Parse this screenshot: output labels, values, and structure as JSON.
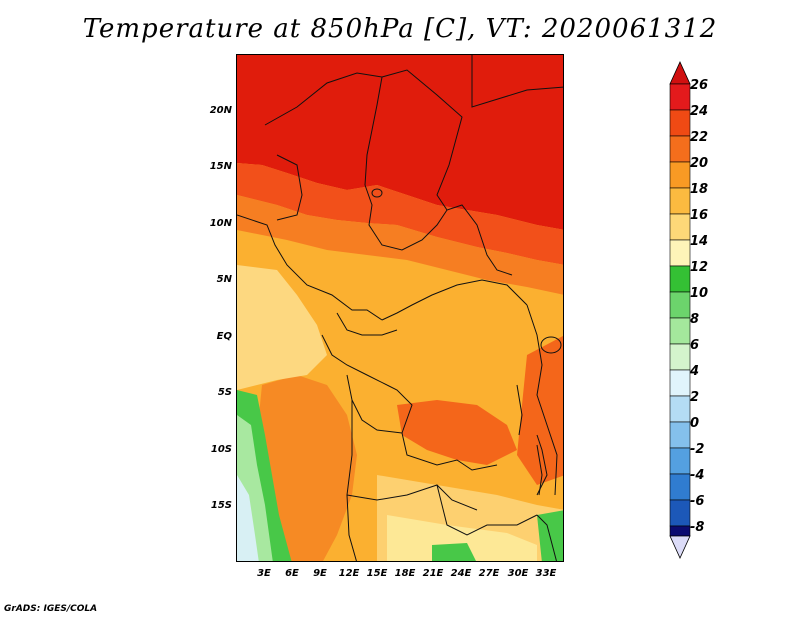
{
  "title": "Temperature at 850hPa [C], VT: 2020061312",
  "credit": "GrADS: IGES/COLA",
  "map": {
    "projection": "lat-lon",
    "region": "Central and Southern Africa",
    "lat_ticks": [
      "20N",
      "15N",
      "10N",
      "5N",
      "EQ",
      "5S",
      "10S",
      "15S"
    ],
    "lon_ticks": [
      "3E",
      "6E",
      "9E",
      "12E",
      "15E",
      "18E",
      "21E",
      "24E",
      "27E",
      "30E",
      "33E"
    ],
    "lat_range": [
      -19,
      24
    ],
    "lon_range": [
      0,
      35
    ]
  },
  "colorbar": {
    "levels": [
      "26",
      "24",
      "22",
      "20",
      "18",
      "16",
      "14",
      "12",
      "10",
      "8",
      "6",
      "4",
      "2",
      "0",
      "-2",
      "-4",
      "-6",
      "-8"
    ],
    "colors": [
      "#e31a1c",
      "#f03c10",
      "#f4661a",
      "#f89020",
      "#fbb030",
      "#fdd060",
      "#fde896",
      "#fdf7c4",
      "#3cc43c",
      "#78d878",
      "#a8e8a0",
      "#d8f4d0",
      "#d0ecf8",
      "#a8d4f0",
      "#78b8e8",
      "#4c98dc",
      "#2c74c8",
      "#1c4cb0",
      "#142c90",
      "#0a0a6c",
      "#d8d8f4"
    ]
  },
  "legend_colors": {
    "hot": "#dd1c10",
    "warm": "#f06018",
    "orange": "#f4a430",
    "yellow": "#fcd070",
    "pale": "#fdf0b0",
    "green": "#48c848",
    "light_green": "#b8e8a8",
    "cyan": "#d8f0f4"
  }
}
